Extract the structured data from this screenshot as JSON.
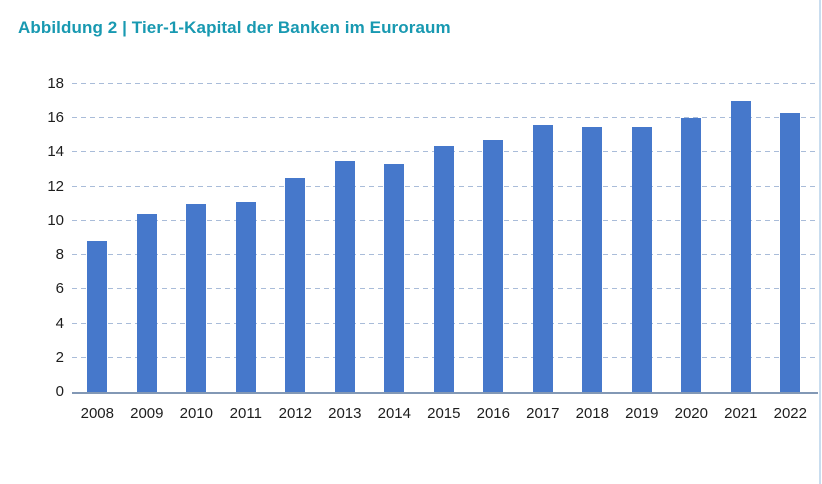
{
  "title": "Abbildung 2 | Tier-1-Kapital der Banken im Euroraum",
  "colors": {
    "title": "#1899b1",
    "bar": "#4678cb",
    "gridline": "#a9bcd9",
    "axis_line": "#8298b5",
    "tick_label": "#1d1d1d",
    "right_border": "#c9ddef"
  },
  "chart_data": {
    "type": "bar",
    "title": "Abbildung 2 | Tier-1-Kapital der Banken im Euroraum",
    "categories": [
      "2008",
      "2009",
      "2010",
      "2011",
      "2012",
      "2013",
      "2014",
      "2015",
      "2016",
      "2017",
      "2018",
      "2019",
      "2020",
      "2021",
      "2022"
    ],
    "values": [
      8.8,
      10.4,
      11.0,
      11.1,
      12.5,
      13.5,
      13.3,
      14.4,
      14.7,
      15.6,
      15.5,
      15.5,
      16.0,
      17.0,
      16.3
    ],
    "xlabel": "",
    "ylabel": "",
    "ylim": [
      0,
      18
    ],
    "yticks": [
      0,
      2,
      4,
      6,
      8,
      10,
      12,
      14,
      16,
      18
    ],
    "grid": "horizontal-dashed",
    "legend": "none",
    "bar_color": "#4678cb"
  }
}
